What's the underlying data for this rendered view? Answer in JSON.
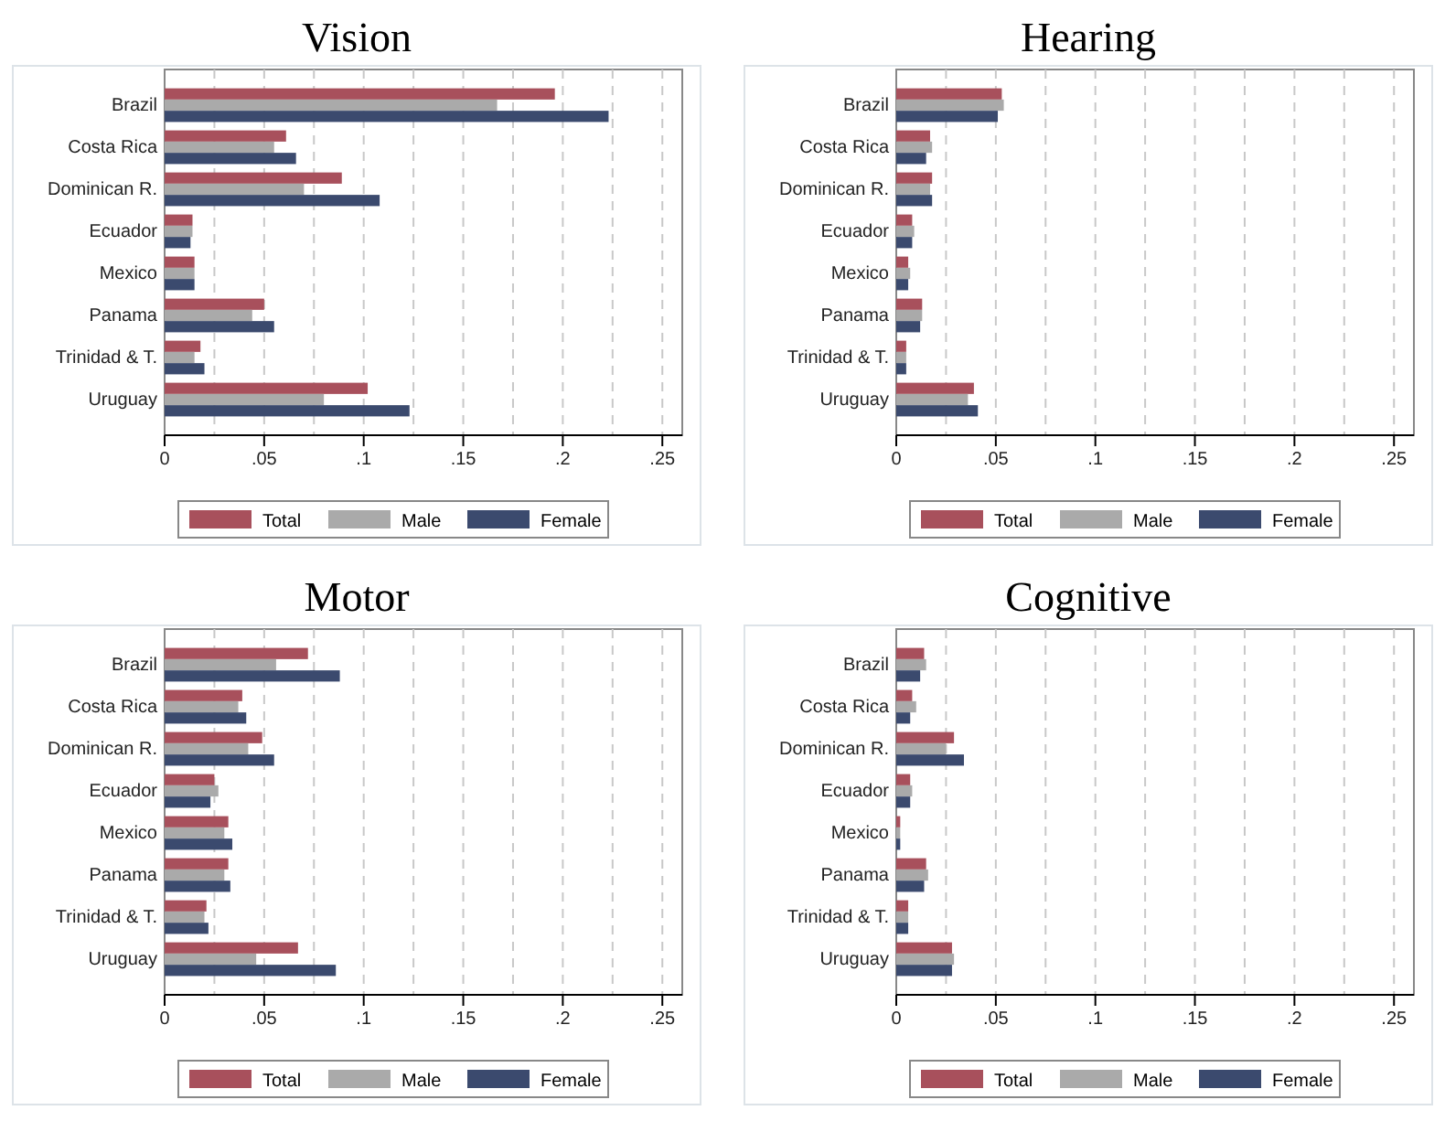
{
  "chart_data": [
    {
      "type": "bar",
      "orientation": "horizontal",
      "title": "Vision",
      "categories": [
        "Brazil",
        "Costa Rica",
        "Dominican R.",
        "Ecuador",
        "Mexico",
        "Panama",
        "Trinidad & T.",
        "Uruguay"
      ],
      "series": [
        {
          "name": "Total",
          "color": "#a8505c",
          "values": [
            0.196,
            0.061,
            0.089,
            0.014,
            0.015,
            0.05,
            0.018,
            0.102
          ]
        },
        {
          "name": "Male",
          "color": "#aaaaaa",
          "values": [
            0.167,
            0.055,
            0.07,
            0.014,
            0.015,
            0.044,
            0.015,
            0.08
          ]
        },
        {
          "name": "Female",
          "color": "#3b4a6e",
          "values": [
            0.223,
            0.066,
            0.108,
            0.013,
            0.015,
            0.055,
            0.02,
            0.123
          ]
        }
      ],
      "xlim": [
        0,
        0.26
      ],
      "xticks": [
        {
          "value": 0,
          "label": "0"
        },
        {
          "value": 0.025,
          "label": null
        },
        {
          "value": 0.05,
          "label": ".05"
        },
        {
          "value": 0.075,
          "label": null
        },
        {
          "value": 0.1,
          "label": ".1"
        },
        {
          "value": 0.125,
          "label": null
        },
        {
          "value": 0.15,
          "label": ".15"
        },
        {
          "value": 0.175,
          "label": null
        },
        {
          "value": 0.2,
          "label": ".2"
        },
        {
          "value": 0.225,
          "label": null
        },
        {
          "value": 0.25,
          "label": ".25"
        }
      ],
      "grid": "x",
      "legend": "bottom"
    },
    {
      "type": "bar",
      "orientation": "horizontal",
      "title": "Hearing",
      "categories": [
        "Brazil",
        "Costa Rica",
        "Dominican R.",
        "Ecuador",
        "Mexico",
        "Panama",
        "Trinidad & T.",
        "Uruguay"
      ],
      "series": [
        {
          "name": "Total",
          "color": "#a8505c",
          "values": [
            0.053,
            0.017,
            0.018,
            0.008,
            0.006,
            0.013,
            0.005,
            0.039
          ]
        },
        {
          "name": "Male",
          "color": "#aaaaaa",
          "values": [
            0.054,
            0.018,
            0.017,
            0.009,
            0.007,
            0.013,
            0.005,
            0.036
          ]
        },
        {
          "name": "Female",
          "color": "#3b4a6e",
          "values": [
            0.051,
            0.015,
            0.018,
            0.008,
            0.006,
            0.012,
            0.005,
            0.041
          ]
        }
      ],
      "xlim": [
        0,
        0.26
      ],
      "xticks": [
        {
          "value": 0,
          "label": "0"
        },
        {
          "value": 0.025,
          "label": null
        },
        {
          "value": 0.05,
          "label": ".05"
        },
        {
          "value": 0.075,
          "label": null
        },
        {
          "value": 0.1,
          "label": ".1"
        },
        {
          "value": 0.125,
          "label": null
        },
        {
          "value": 0.15,
          "label": ".15"
        },
        {
          "value": 0.175,
          "label": null
        },
        {
          "value": 0.2,
          "label": ".2"
        },
        {
          "value": 0.225,
          "label": null
        },
        {
          "value": 0.25,
          "label": ".25"
        }
      ],
      "grid": "x",
      "legend": "bottom"
    },
    {
      "type": "bar",
      "orientation": "horizontal",
      "title": "Motor",
      "categories": [
        "Brazil",
        "Costa Rica",
        "Dominican R.",
        "Ecuador",
        "Mexico",
        "Panama",
        "Trinidad & T.",
        "Uruguay"
      ],
      "series": [
        {
          "name": "Total",
          "color": "#a8505c",
          "values": [
            0.072,
            0.039,
            0.049,
            0.025,
            0.032,
            0.032,
            0.021,
            0.067
          ]
        },
        {
          "name": "Male",
          "color": "#aaaaaa",
          "values": [
            0.056,
            0.037,
            0.042,
            0.027,
            0.03,
            0.03,
            0.02,
            0.046
          ]
        },
        {
          "name": "Female",
          "color": "#3b4a6e",
          "values": [
            0.088,
            0.041,
            0.055,
            0.023,
            0.034,
            0.033,
            0.022,
            0.086
          ]
        }
      ],
      "xlim": [
        0,
        0.26
      ],
      "xticks": [
        {
          "value": 0,
          "label": "0"
        },
        {
          "value": 0.025,
          "label": null
        },
        {
          "value": 0.05,
          "label": ".05"
        },
        {
          "value": 0.075,
          "label": null
        },
        {
          "value": 0.1,
          "label": ".1"
        },
        {
          "value": 0.125,
          "label": null
        },
        {
          "value": 0.15,
          "label": ".15"
        },
        {
          "value": 0.175,
          "label": null
        },
        {
          "value": 0.2,
          "label": ".2"
        },
        {
          "value": 0.225,
          "label": null
        },
        {
          "value": 0.25,
          "label": ".25"
        }
      ],
      "grid": "x",
      "legend": "bottom"
    },
    {
      "type": "bar",
      "orientation": "horizontal",
      "title": "Cognitive",
      "categories": [
        "Brazil",
        "Costa Rica",
        "Dominican R.",
        "Ecuador",
        "Mexico",
        "Panama",
        "Trinidad & T.",
        "Uruguay"
      ],
      "series": [
        {
          "name": "Total",
          "color": "#a8505c",
          "values": [
            0.014,
            0.008,
            0.029,
            0.007,
            0.002,
            0.015,
            0.006,
            0.028
          ]
        },
        {
          "name": "Male",
          "color": "#aaaaaa",
          "values": [
            0.015,
            0.01,
            0.025,
            0.008,
            0.002,
            0.016,
            0.006,
            0.029
          ]
        },
        {
          "name": "Female",
          "color": "#3b4a6e",
          "values": [
            0.012,
            0.007,
            0.034,
            0.007,
            0.002,
            0.014,
            0.006,
            0.028
          ]
        }
      ],
      "xlim": [
        0,
        0.26
      ],
      "xticks": [
        {
          "value": 0,
          "label": "0"
        },
        {
          "value": 0.025,
          "label": null
        },
        {
          "value": 0.05,
          "label": ".05"
        },
        {
          "value": 0.075,
          "label": null
        },
        {
          "value": 0.1,
          "label": ".1"
        },
        {
          "value": 0.125,
          "label": null
        },
        {
          "value": 0.15,
          "label": ".15"
        },
        {
          "value": 0.175,
          "label": null
        },
        {
          "value": 0.2,
          "label": ".2"
        },
        {
          "value": 0.225,
          "label": null
        },
        {
          "value": 0.25,
          "label": ".25"
        }
      ],
      "grid": "x",
      "legend": "bottom"
    }
  ]
}
